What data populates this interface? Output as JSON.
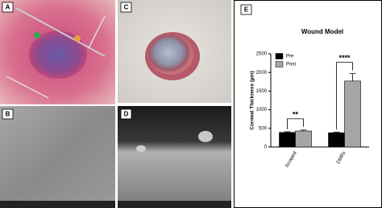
{
  "panels": [
    "A",
    "B",
    "C",
    "D",
    "E"
  ],
  "chart_data": {
    "type": "bar",
    "title": "Wound Model",
    "ylabel": "Corneal Thickness (µm)",
    "categories": [
      "Scraped",
      "DMRx"
    ],
    "series": [
      {
        "name": "Pre",
        "color": "#000000",
        "values": [
          390,
          380
        ],
        "errors": [
          20,
          15
        ]
      },
      {
        "name": "Post",
        "color": "#a6a6a6",
        "values": [
          430,
          1770
        ],
        "errors": [
          25,
          200
        ]
      }
    ],
    "annotations": [
      "**",
      "****"
    ],
    "ylim": [
      0,
      2500
    ],
    "yticks": [
      0,
      500,
      1000,
      1500,
      2000,
      2500
    ],
    "legend": "upper left"
  }
}
